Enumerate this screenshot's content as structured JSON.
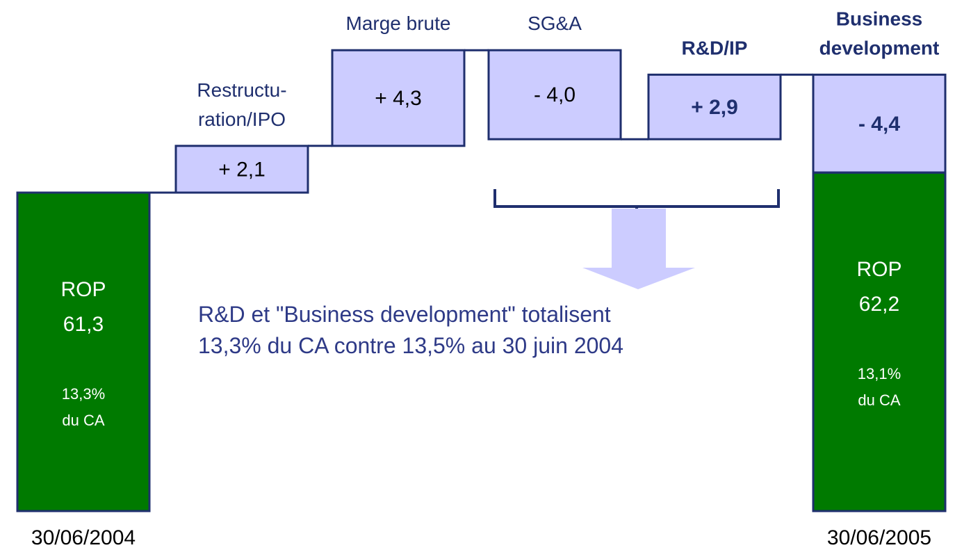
{
  "chart_data": {
    "type": "waterfall",
    "categories": [
      "30/06/2004",
      "Restructu-\nration/IPO",
      "Marge brute",
      "SG&A",
      "R&D/IP",
      "Business\ndevelopment",
      "30/06/2005"
    ],
    "values": [
      61.3,
      2.1,
      4.3,
      -4.0,
      2.9,
      -4.4,
      62.2
    ],
    "value_labels": [
      "61,3",
      "+ 2,1",
      "+ 4,3",
      "- 4,0",
      "+ 2,9",
      "- 4,4",
      "62,2"
    ],
    "total_label": "ROP",
    "total_margins": [
      "13,3%\ndu CA",
      "13,1%\ndu CA"
    ],
    "annotation": "R&D et \"Business development\" totalisent\n13,3% du CA contre 13,5% au 30 juin 2004",
    "colors": {
      "total": "#007a00",
      "delta": "#ccccff",
      "edge": "#1f2f6e"
    }
  }
}
